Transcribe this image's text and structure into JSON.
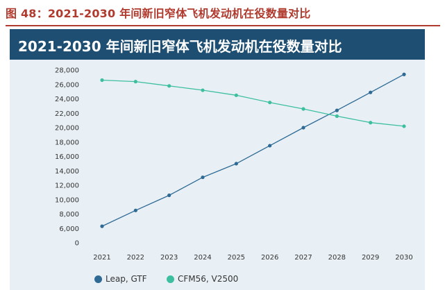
{
  "caption": "图 48：2021-2030 年间新旧窄体飞机发动机在役数量对比",
  "banner_title": "2021-2030 年间新旧窄体飞机发动机在役数量对比",
  "colors": {
    "caption": "#b03a2e",
    "banner_bg": "#1e4f72",
    "panel_bg": "#e8f0f6",
    "leap": "#2e6a94",
    "cfm": "#3dbf9f"
  },
  "chart_data": {
    "type": "line",
    "title": "2021-2030 年间新旧窄体飞机发动机在役数量对比",
    "xlabel": "",
    "ylabel": "",
    "categories": [
      "2021",
      "2022",
      "2023",
      "2024",
      "2025",
      "2026",
      "2027",
      "2028",
      "2029",
      "2030"
    ],
    "y_ticks": [
      "28,000",
      "26,000",
      "24,000",
      "22,000",
      "20,000",
      "18,000",
      "16,000",
      "14,000",
      "12,000",
      "10,000",
      "8,000",
      "6,000",
      "0"
    ],
    "series": [
      {
        "name": "Leap, GTF",
        "color": "#2e6a94",
        "values": [
          6300,
          8500,
          10600,
          13100,
          15000,
          17500,
          20000,
          22400,
          24900,
          27400
        ]
      },
      {
        "name": "CFM56, V2500",
        "color": "#3dbf9f",
        "values": [
          26600,
          26400,
          25800,
          25200,
          24500,
          23500,
          22600,
          21600,
          20700,
          20200
        ]
      }
    ],
    "legend": [
      "Leap, GTF",
      "CFM56, V2500"
    ],
    "legend_position": "bottom",
    "grid": false
  }
}
